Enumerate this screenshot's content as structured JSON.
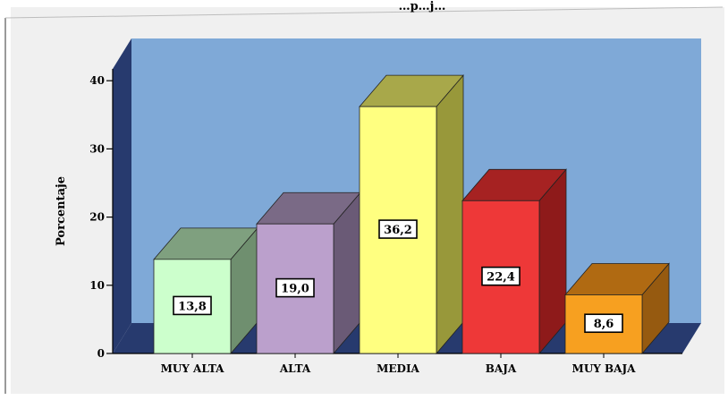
{
  "chart_data": {
    "type": "bar",
    "title": "…p…j…",
    "categories": [
      "MUY ALTA",
      "ALTA",
      "MEDIA",
      "BAJA",
      "MUY BAJA"
    ],
    "values": [
      13.8,
      19.0,
      36.2,
      22.4,
      8.6
    ],
    "value_labels": [
      "13,8",
      "19,0",
      "36,2",
      "22,4",
      "8,6"
    ],
    "ylabel": "Porcentaje",
    "xlabel": "",
    "ylim": [
      0,
      43
    ],
    "yticks": [
      0,
      10,
      20,
      30,
      40
    ],
    "grid": false,
    "legend": "none",
    "style": "3d",
    "colors": {
      "bars": [
        "#ccffcc",
        "#bba0cc",
        "#ffff80",
        "#ee3838",
        "#f7a020"
      ],
      "bar_tops": [
        "#7fa07f",
        "#7a6a86",
        "#a8a84a",
        "#a62222",
        "#b06a12"
      ],
      "bar_sides": [
        "#6f8f6f",
        "#6a5a76",
        "#98983a",
        "#8e1a1a",
        "#965a10"
      ],
      "wall": "#7fa9d7",
      "floor_and_side_wall": "#273a6e",
      "outer_panel": "#f0f0f0"
    }
  }
}
